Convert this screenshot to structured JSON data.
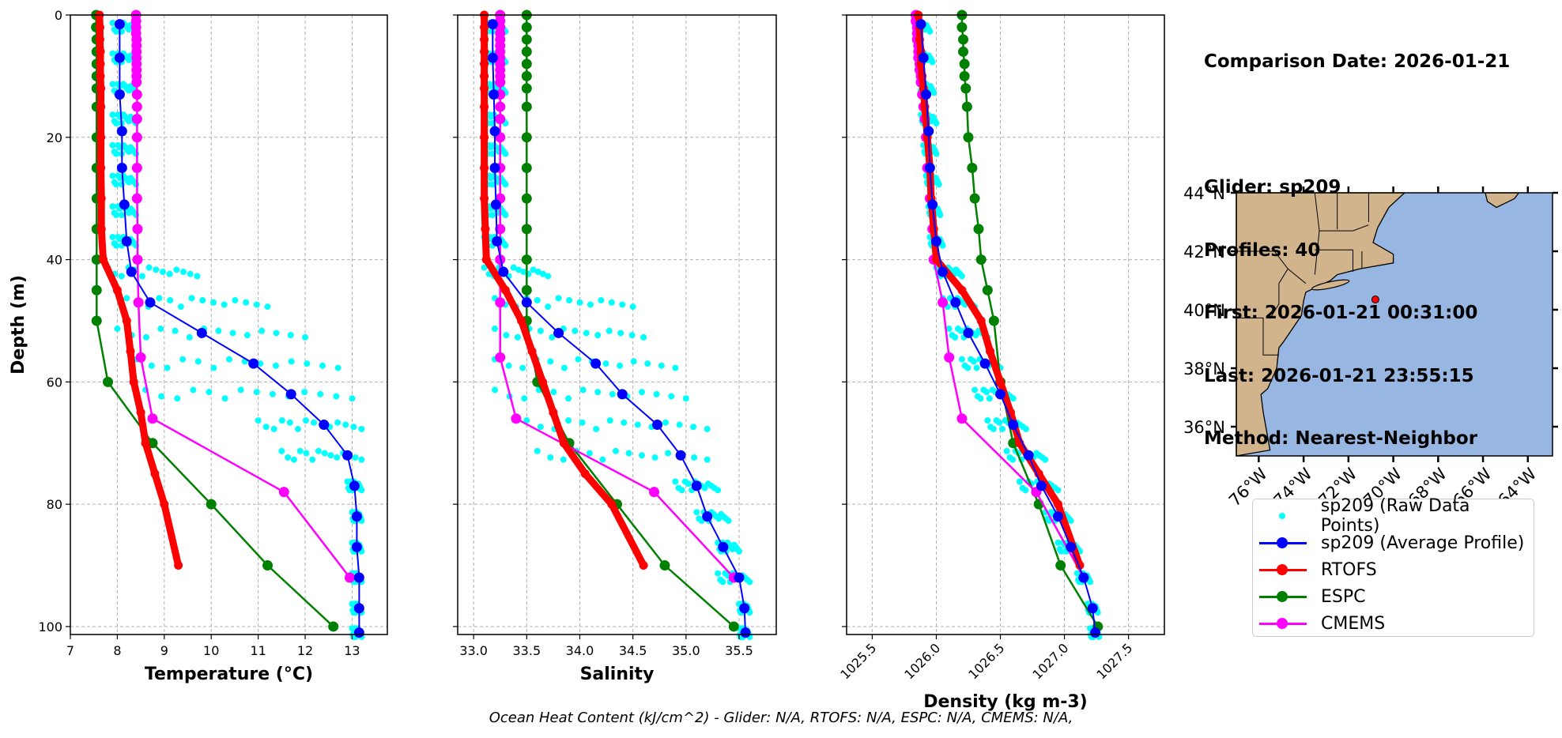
{
  "info": {
    "comparison_date": "Comparison Date: 2026-01-21",
    "glider": "Glider: sp209",
    "profiles": "Profiles: 40",
    "first": "First: 2026-01-21 00:31:00",
    "last": "Last: 2026-01-21 23:55:15",
    "method": "Method: Nearest-Neighbor"
  },
  "footer": "Ocean Heat Content (kJ/cm^2) - Glider: N/A,  RTOFS: N/A,  ESPC: N/A,  CMEMS: N/A,",
  "colors": {
    "raw": "#00ffff",
    "glider": "#0000ff",
    "rtofs": "#ff0000",
    "espc": "#008000",
    "cmems": "#ff00ff",
    "land": "#d2b48c",
    "ocean": "#97b6e1",
    "grid": "#b0b0b0"
  },
  "legend": [
    {
      "key": "raw",
      "label": "sp209 (Raw Data Points)",
      "style": "dot"
    },
    {
      "key": "glider",
      "label": "sp209 (Average Profile)",
      "style": "line"
    },
    {
      "key": "rtofs",
      "label": "RTOFS",
      "style": "line"
    },
    {
      "key": "espc",
      "label": "ESPC",
      "style": "line"
    },
    {
      "key": "cmems",
      "label": "CMEMS",
      "style": "line"
    }
  ],
  "chart_data": [
    {
      "type": "line",
      "title": "",
      "xlabel": "Temperature (°C)",
      "ylabel": "Depth (m)",
      "xlim": [
        7,
        13.75
      ],
      "ylim": [
        101.3,
        0
      ],
      "xticks": [
        "7",
        "8",
        "9",
        "10",
        "11",
        "12",
        "13"
      ],
      "yticks": [
        "0",
        "20",
        "40",
        "60",
        "80",
        "100"
      ],
      "grid": true,
      "series": [
        {
          "name": "sp209 (Average Profile)",
          "key": "glider",
          "depth": [
            1.5,
            7,
            13,
            19,
            25,
            31,
            37,
            42,
            47,
            52,
            57,
            62,
            67,
            72,
            77,
            82,
            87,
            92,
            97,
            101
          ],
          "values": [
            8.05,
            8.05,
            8.05,
            8.1,
            8.1,
            8.15,
            8.2,
            8.3,
            8.7,
            9.8,
            10.9,
            11.7,
            12.4,
            12.9,
            13.05,
            13.1,
            13.1,
            13.15,
            13.15,
            13.15
          ]
        },
        {
          "name": "RTOFS",
          "key": "rtofs",
          "depth": [
            0,
            2,
            4,
            6,
            8,
            10,
            12,
            15,
            20,
            25,
            30,
            35,
            40,
            45,
            50,
            55,
            60,
            65,
            70,
            75,
            80,
            90
          ],
          "values": [
            7.62,
            7.63,
            7.63,
            7.64,
            7.64,
            7.64,
            7.65,
            7.65,
            7.65,
            7.65,
            7.66,
            7.66,
            7.7,
            8.0,
            8.2,
            8.28,
            8.35,
            8.5,
            8.6,
            8.8,
            9.0,
            9.3
          ]
        },
        {
          "name": "ESPC",
          "key": "espc",
          "depth": [
            0,
            2,
            4,
            6,
            8,
            10,
            12,
            15,
            20,
            25,
            30,
            35,
            40,
            45,
            50,
            60,
            70,
            80,
            90,
            100
          ],
          "values": [
            7.55,
            7.55,
            7.56,
            7.56,
            7.56,
            7.56,
            7.56,
            7.56,
            7.56,
            7.56,
            7.56,
            7.56,
            7.56,
            7.56,
            7.56,
            7.8,
            8.75,
            10.0,
            11.2,
            12.6
          ]
        },
        {
          "name": "CMEMS",
          "key": "cmems",
          "depth": [
            0,
            1,
            2,
            3,
            4,
            5,
            6,
            7,
            8,
            9,
            10,
            11,
            13,
            15,
            17,
            20,
            25,
            30,
            35,
            40,
            47,
            56,
            66,
            78,
            92
          ],
          "values": [
            8.4,
            8.4,
            8.4,
            8.4,
            8.41,
            8.41,
            8.41,
            8.41,
            8.41,
            8.41,
            8.41,
            8.41,
            8.42,
            8.42,
            8.42,
            8.42,
            8.42,
            8.42,
            8.43,
            8.43,
            8.45,
            8.5,
            8.75,
            11.55,
            12.95
          ]
        }
      ],
      "raw_points": {
        "depth_bins": [
          2,
          7,
          12,
          17,
          22,
          27,
          32,
          37,
          42,
          47,
          52,
          57,
          62,
          67,
          72,
          77,
          82,
          87,
          92,
          97,
          101
        ],
        "ranges": [
          [
            7.9,
            8.4
          ],
          [
            7.9,
            8.4
          ],
          [
            7.9,
            8.4
          ],
          [
            7.9,
            8.4
          ],
          [
            7.9,
            8.4
          ],
          [
            7.9,
            8.4
          ],
          [
            7.9,
            8.4
          ],
          [
            7.9,
            8.4
          ],
          [
            7.8,
            9.7
          ],
          [
            8.2,
            11.2
          ],
          [
            8.0,
            12.0
          ],
          [
            8.4,
            12.7
          ],
          [
            8.6,
            13.0
          ],
          [
            11.0,
            13.2
          ],
          [
            11.5,
            13.2
          ],
          [
            12.9,
            13.2
          ],
          [
            13.0,
            13.2
          ],
          [
            13.0,
            13.2
          ],
          [
            13.0,
            13.2
          ],
          [
            13.0,
            13.2
          ],
          [
            13.0,
            13.2
          ]
        ]
      }
    },
    {
      "type": "line",
      "title": "",
      "xlabel": "Salinity",
      "ylabel": "",
      "xlim": [
        32.85,
        35.85
      ],
      "ylim": [
        101.3,
        0
      ],
      "xticks": [
        "33.0",
        "33.5",
        "34.0",
        "34.5",
        "35.0",
        "35.5"
      ],
      "grid": true,
      "series": [
        {
          "name": "sp209 (Average Profile)",
          "key": "glider",
          "depth": [
            1.5,
            7,
            13,
            19,
            25,
            31,
            37,
            42,
            47,
            52,
            57,
            62,
            67,
            72,
            77,
            82,
            87,
            92,
            97,
            101
          ],
          "values": [
            33.18,
            33.18,
            33.19,
            33.2,
            33.2,
            33.21,
            33.22,
            33.28,
            33.5,
            33.8,
            34.15,
            34.4,
            34.73,
            34.95,
            35.1,
            35.2,
            35.35,
            35.5,
            35.55,
            35.56
          ]
        },
        {
          "name": "RTOFS",
          "key": "rtofs",
          "depth": [
            0,
            2,
            4,
            6,
            8,
            10,
            12,
            15,
            20,
            25,
            30,
            35,
            40,
            45,
            50,
            55,
            60,
            65,
            70,
            75,
            80,
            90
          ],
          "values": [
            33.1,
            33.1,
            33.1,
            33.1,
            33.1,
            33.1,
            33.1,
            33.1,
            33.1,
            33.1,
            33.1,
            33.11,
            33.12,
            33.3,
            33.45,
            33.55,
            33.65,
            33.75,
            33.85,
            34.05,
            34.3,
            34.6
          ]
        },
        {
          "name": "ESPC",
          "key": "espc",
          "depth": [
            0,
            2,
            4,
            6,
            8,
            10,
            12,
            15,
            20,
            25,
            30,
            35,
            40,
            45,
            50,
            60,
            70,
            80,
            90,
            100
          ],
          "values": [
            33.5,
            33.5,
            33.5,
            33.5,
            33.5,
            33.5,
            33.5,
            33.5,
            33.5,
            33.5,
            33.5,
            33.5,
            33.5,
            33.5,
            33.5,
            33.6,
            33.9,
            34.35,
            34.8,
            35.45
          ]
        },
        {
          "name": "CMEMS",
          "key": "cmems",
          "depth": [
            0,
            1,
            2,
            3,
            4,
            5,
            6,
            7,
            8,
            9,
            10,
            11,
            13,
            15,
            17,
            20,
            25,
            30,
            35,
            40,
            47,
            56,
            66,
            78,
            92
          ],
          "values": [
            33.25,
            33.25,
            33.25,
            33.25,
            33.25,
            33.25,
            33.25,
            33.25,
            33.25,
            33.25,
            33.25,
            33.25,
            33.25,
            33.25,
            33.25,
            33.25,
            33.25,
            33.25,
            33.25,
            33.25,
            33.25,
            33.25,
            33.4,
            34.7,
            35.45
          ]
        }
      ],
      "raw_points": {
        "depth_bins": [
          2,
          7,
          12,
          17,
          22,
          27,
          32,
          37,
          42,
          47,
          52,
          57,
          62,
          67,
          72,
          77,
          82,
          87,
          92,
          97,
          101
        ],
        "ranges": [
          [
            33.1,
            33.3
          ],
          [
            33.1,
            33.3
          ],
          [
            33.1,
            33.3
          ],
          [
            33.1,
            33.3
          ],
          [
            33.1,
            33.3
          ],
          [
            33.1,
            33.3
          ],
          [
            33.1,
            33.3
          ],
          [
            33.1,
            33.3
          ],
          [
            33.1,
            33.7
          ],
          [
            33.2,
            34.5
          ],
          [
            33.2,
            34.6
          ],
          [
            33.2,
            34.9
          ],
          [
            33.2,
            35.0
          ],
          [
            33.5,
            35.2
          ],
          [
            33.6,
            35.2
          ],
          [
            34.9,
            35.3
          ],
          [
            35.1,
            35.4
          ],
          [
            35.3,
            35.5
          ],
          [
            35.3,
            35.6
          ],
          [
            35.5,
            35.6
          ],
          [
            35.5,
            35.6
          ]
        ]
      }
    },
    {
      "type": "line",
      "title": "",
      "xlabel": "Density (kg m-3)",
      "ylabel": "",
      "xlim": [
        1025.3,
        1027.78
      ],
      "ylim": [
        101.3,
        0
      ],
      "xticks": [
        "1025.5",
        "1026.0",
        "1026.5",
        "1027.0",
        "1027.5"
      ],
      "grid": true,
      "series": [
        {
          "name": "sp209 (Average Profile)",
          "key": "glider",
          "depth": [
            1.5,
            7,
            13,
            19,
            25,
            31,
            37,
            42,
            47,
            52,
            57,
            62,
            67,
            72,
            77,
            82,
            87,
            92,
            97,
            101
          ],
          "values": [
            1025.88,
            1025.9,
            1025.92,
            1025.94,
            1025.95,
            1025.97,
            1026.0,
            1026.05,
            1026.15,
            1026.25,
            1026.38,
            1026.5,
            1026.6,
            1026.72,
            1026.82,
            1026.95,
            1027.05,
            1027.15,
            1027.22,
            1027.24
          ]
        },
        {
          "name": "RTOFS",
          "key": "rtofs",
          "depth": [
            0,
            2,
            4,
            6,
            8,
            10,
            12,
            15,
            20,
            25,
            30,
            35,
            40,
            45,
            50,
            55,
            60,
            65,
            70,
            75,
            80,
            90
          ],
          "values": [
            1025.86,
            1025.87,
            1025.87,
            1025.88,
            1025.88,
            1025.89,
            1025.9,
            1025.91,
            1025.93,
            1025.95,
            1025.96,
            1025.98,
            1026.0,
            1026.2,
            1026.35,
            1026.42,
            1026.5,
            1026.58,
            1026.65,
            1026.8,
            1026.95,
            1027.12
          ]
        },
        {
          "name": "ESPC",
          "key": "espc",
          "depth": [
            0,
            2,
            4,
            6,
            8,
            10,
            12,
            15,
            20,
            25,
            30,
            35,
            40,
            45,
            50,
            60,
            70,
            80,
            90,
            100
          ],
          "values": [
            1026.2,
            1026.2,
            1026.21,
            1026.21,
            1026.22,
            1026.22,
            1026.23,
            1026.24,
            1026.25,
            1026.28,
            1026.3,
            1026.33,
            1026.35,
            1026.4,
            1026.45,
            1026.5,
            1026.6,
            1026.8,
            1026.97,
            1027.26
          ]
        },
        {
          "name": "CMEMS",
          "key": "cmems",
          "depth": [
            0,
            1,
            2,
            3,
            4,
            5,
            6,
            7,
            8,
            9,
            10,
            11,
            13,
            15,
            17,
            20,
            25,
            30,
            35,
            40,
            47,
            56,
            66,
            78,
            92
          ],
          "values": [
            1025.84,
            1025.84,
            1025.85,
            1025.85,
            1025.85,
            1025.86,
            1025.86,
            1025.86,
            1025.87,
            1025.87,
            1025.88,
            1025.88,
            1025.89,
            1025.9,
            1025.91,
            1025.92,
            1025.93,
            1025.95,
            1025.97,
            1025.98,
            1026.05,
            1026.1,
            1026.2,
            1026.78,
            1027.15
          ]
        }
      ],
      "raw_points": {
        "depth_bins": [
          2,
          7,
          12,
          17,
          22,
          27,
          32,
          37,
          42,
          47,
          52,
          57,
          62,
          67,
          72,
          77,
          82,
          87,
          92,
          97,
          101
        ],
        "ranges": [
          [
            1025.83,
            1025.95
          ],
          [
            1025.85,
            1025.97
          ],
          [
            1025.87,
            1025.98
          ],
          [
            1025.88,
            1026.0
          ],
          [
            1025.9,
            1026.0
          ],
          [
            1025.92,
            1026.02
          ],
          [
            1025.94,
            1026.03
          ],
          [
            1025.95,
            1026.05
          ],
          [
            1026.0,
            1026.2
          ],
          [
            1026.05,
            1026.3
          ],
          [
            1026.1,
            1026.4
          ],
          [
            1026.2,
            1026.5
          ],
          [
            1026.3,
            1026.6
          ],
          [
            1026.4,
            1026.7
          ],
          [
            1026.55,
            1026.85
          ],
          [
            1026.65,
            1026.95
          ],
          [
            1026.85,
            1027.05
          ],
          [
            1026.95,
            1027.12
          ],
          [
            1027.1,
            1027.2
          ],
          [
            1027.18,
            1027.26
          ],
          [
            1027.2,
            1027.27
          ]
        ]
      }
    }
  ],
  "map": {
    "lat_ticks": [
      "44°N",
      "42°N",
      "40°N",
      "38°N",
      "36°N"
    ],
    "lon_ticks": [
      "76°W",
      "74°W",
      "72°W",
      "70°W",
      "68°W",
      "66°W",
      "64°W"
    ],
    "extent": {
      "lon_min": -77,
      "lon_max": -62.9,
      "lat_min": 35,
      "lat_max": 44
    },
    "glider_position": {
      "lon": -70.8,
      "lat": 40.35
    }
  }
}
